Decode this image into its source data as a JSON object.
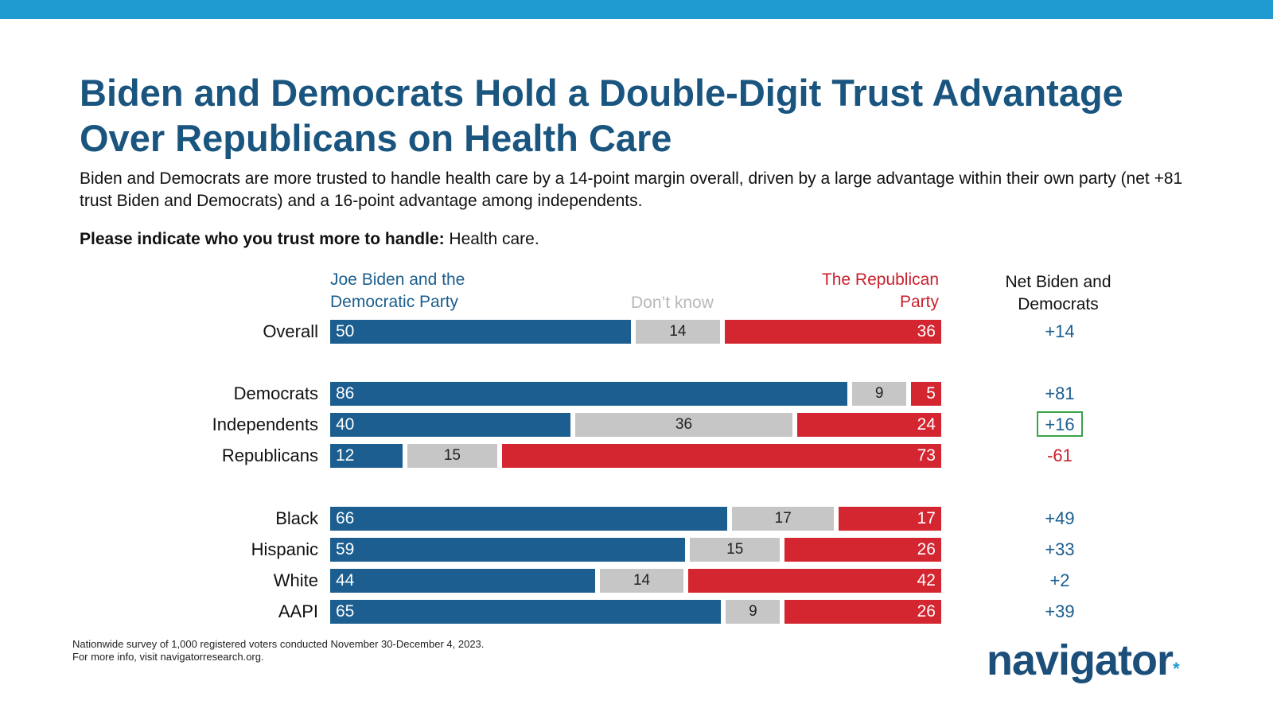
{
  "title": "Biden and Democrats Hold a Double-Digit Trust Advantage Over Republicans on Health Care",
  "subtitle": "Biden and Democrats are more trusted to handle health care by a 14-point margin overall, driven by a large advantage within their own party (net +81 trust Biden and Democrats) and a 16-point advantage among independents.",
  "question": {
    "prompt": "Please indicate who you trust more to handle:",
    "topic": " Health care."
  },
  "legend": {
    "biden": "Joe Biden and the Democratic Party",
    "dont_know": "Don’t know",
    "republican": "The Republican Party",
    "net": "Net Biden and Democrats"
  },
  "colors": {
    "biden": "#1b5e8f",
    "dont_know": "#c6c6c6",
    "republican": "#d42630",
    "highlight_box": "#3aa24a",
    "top_bar": "#1f9bd1"
  },
  "chart_data": {
    "type": "bar",
    "orientation": "horizontal",
    "stacked": true,
    "categories": [
      "Overall",
      "Democrats",
      "Independents",
      "Republicans",
      "Black",
      "Hispanic",
      "White",
      "AAPI"
    ],
    "series": [
      {
        "name": "Joe Biden and the Democratic Party",
        "values": [
          50,
          86,
          40,
          12,
          66,
          59,
          44,
          65
        ]
      },
      {
        "name": "Don’t know",
        "values": [
          14,
          9,
          36,
          15,
          17,
          15,
          14,
          9
        ]
      },
      {
        "name": "The Republican Party",
        "values": [
          36,
          5,
          24,
          73,
          17,
          26,
          42,
          26
        ]
      }
    ],
    "net": {
      "name": "Net Biden and Democrats",
      "values": [
        "+14",
        "+81",
        "+16",
        "-61",
        "+49",
        "+33",
        "+2",
        "+39"
      ]
    },
    "highlighted_category": "Independents",
    "groups": [
      [
        "Overall"
      ],
      [
        "Democrats",
        "Independents",
        "Republicans"
      ],
      [
        "Black",
        "Hispanic",
        "White",
        "AAPI"
      ]
    ]
  },
  "footnote": {
    "line1": "Nationwide survey of 1,000 registered voters conducted November 30-December 4, 2023.",
    "line2": "For more info, visit navigatorresearch.org."
  },
  "logo": {
    "text": "navigator",
    "mark": "*"
  }
}
